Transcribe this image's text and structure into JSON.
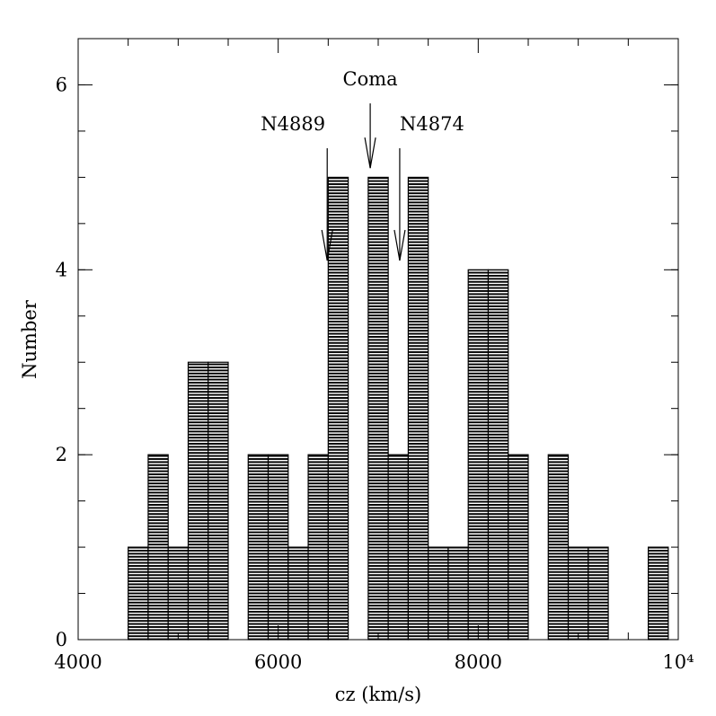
{
  "chart_data": {
    "type": "histogram",
    "xlabel": "cz (km/s)",
    "ylabel": "Number",
    "bins": [
      4500,
      4700,
      4900,
      5100,
      5300,
      5500,
      5700,
      5900,
      6100,
      6300,
      6500,
      6700,
      6900,
      7100,
      7300,
      7500,
      7700,
      7900,
      8100,
      8300,
      8500,
      8700,
      8900,
      9100,
      9300,
      9500,
      9700,
      9900
    ],
    "values": [
      1,
      2,
      1,
      3,
      3,
      0,
      2,
      2,
      1,
      2,
      5,
      0,
      5,
      2,
      5,
      1,
      1,
      4,
      4,
      2,
      0,
      2,
      1,
      1,
      0,
      0,
      1
    ],
    "color": "#000000",
    "xlim": [
      4000,
      10000
    ],
    "ylim": [
      0,
      6.5
    ],
    "xticks": [
      4000,
      6000,
      8000,
      {
        "value": 10000,
        "label": "10⁴"
      }
    ],
    "yticks": [
      0,
      2,
      4,
      6
    ],
    "annotations": [
      {
        "text": "Coma",
        "x": 6920,
        "y": 5.1
      },
      {
        "text": "N4889",
        "x": 6490,
        "y": 4.1
      },
      {
        "text": "N4874",
        "x": 7215,
        "y": 4.1
      }
    ]
  }
}
